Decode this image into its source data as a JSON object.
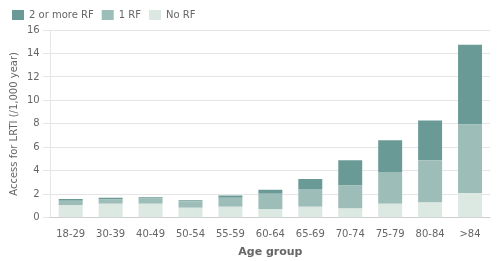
{
  "chart_data": {
    "type": "bar",
    "stacked": true,
    "xlabel": "Age group",
    "ylabel": "Access for LRTI (/1,000 year)",
    "categories": [
      "18-29",
      "30-39",
      "40-49",
      "50-54",
      "55-59",
      "60-64",
      "65-69",
      "70-74",
      "75-79",
      "80-84",
      ">84"
    ],
    "series": [
      {
        "name": "No RF",
        "color": "#dce8e2",
        "values": [
          1.1,
          1.2,
          1.2,
          0.85,
          0.95,
          0.75,
          0.95,
          0.8,
          1.2,
          1.3,
          2.1
        ]
      },
      {
        "name": "1 RF",
        "color": "#9dbdb8",
        "values": [
          0.35,
          0.35,
          0.45,
          0.55,
          0.75,
          1.3,
          1.5,
          1.95,
          2.7,
          3.6,
          5.85
        ]
      },
      {
        "name": "2 or more RF",
        "color": "#6a9a95",
        "values": [
          0.15,
          0.15,
          0.1,
          0.1,
          0.2,
          0.35,
          0.85,
          2.15,
          2.7,
          3.4,
          6.8
        ]
      }
    ],
    "ylim": [
      0,
      16
    ],
    "yticks": [
      0,
      2,
      4,
      6,
      8,
      10,
      12,
      14,
      16
    ],
    "grid": true,
    "legend": "upper left"
  }
}
